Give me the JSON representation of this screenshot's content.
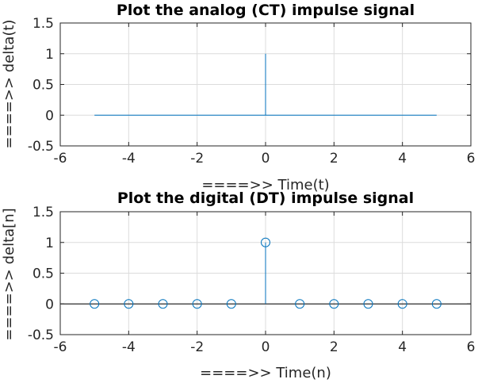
{
  "chart_data": [
    {
      "type": "line",
      "title": "Plot the analog (CT) impulse signal",
      "xlabel": "====>>  Time(t)",
      "ylabel": "====>>  delta(t)",
      "xlim": [
        -6,
        6
      ],
      "ylim": [
        -0.5,
        1.5
      ],
      "xticks": [
        "-6",
        "-4",
        "-2",
        "0",
        "2",
        "4",
        "6"
      ],
      "yticks": [
        "-0.5",
        "0",
        "0.5",
        "1",
        "1.5"
      ],
      "grid": true,
      "color": "#0072bd",
      "x": [
        -5,
        0,
        0,
        0,
        5
      ],
      "y": [
        0,
        0,
        1,
        0,
        0
      ]
    },
    {
      "type": "scatter",
      "subtype": "stem",
      "title": "Plot the digital (DT) impulse signal",
      "xlabel": "====>>  Time(n)",
      "ylabel": "====>>  delta[n]",
      "xlim": [
        -6,
        6
      ],
      "ylim": [
        -0.5,
        1.5
      ],
      "xticks": [
        "-6",
        "-4",
        "-2",
        "0",
        "2",
        "4",
        "6"
      ],
      "yticks": [
        "-0.5",
        "0",
        "0.5",
        "1",
        "1.5"
      ],
      "grid": true,
      "color": "#0072bd",
      "x": [
        -5,
        -4,
        -3,
        -2,
        -1,
        0,
        1,
        2,
        3,
        4,
        5
      ],
      "y": [
        0,
        0,
        0,
        0,
        0,
        1,
        0,
        0,
        0,
        0,
        0
      ]
    }
  ]
}
